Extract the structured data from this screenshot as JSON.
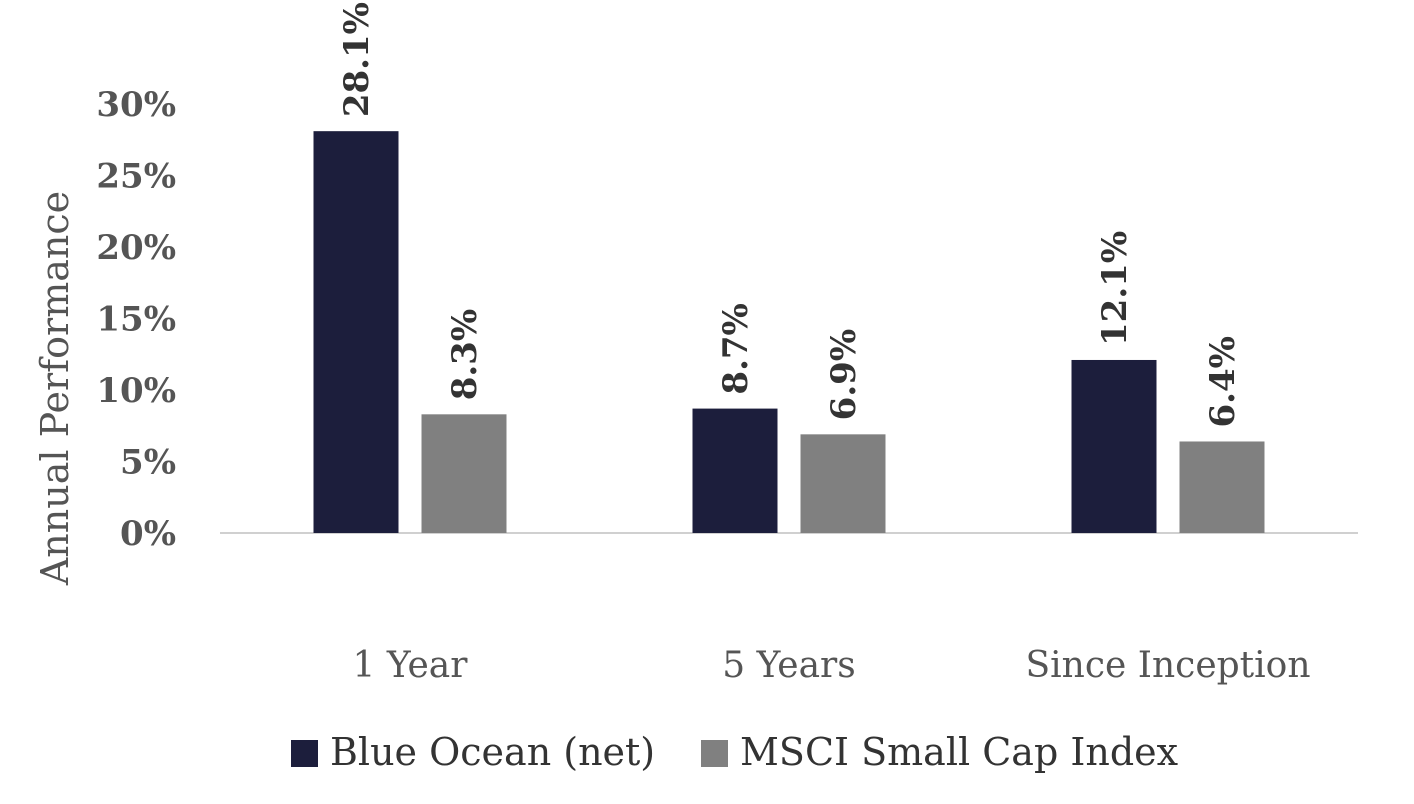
{
  "chart_data": {
    "type": "bar",
    "title": "",
    "xlabel": "",
    "ylabel": "Annual Performance",
    "ylim": [
      0,
      30
    ],
    "yticks": [
      0,
      5,
      10,
      15,
      20,
      25,
      30
    ],
    "ytick_labels": [
      "0%",
      "5%",
      "10%",
      "15%",
      "20%",
      "25%",
      "30%"
    ],
    "categories": [
      "1 Year",
      "5 Years",
      "Since Inception"
    ],
    "series": [
      {
        "name": "Blue Ocean (net)",
        "values": [
          28.1,
          8.7,
          12.1
        ],
        "labels": [
          "28.1%",
          "8.7%",
          "12.1%"
        ],
        "color": "#1c1e3c"
      },
      {
        "name": "MSCI Small Cap Index",
        "values": [
          8.3,
          6.9,
          6.4
        ],
        "labels": [
          "8.3%",
          "6.9%",
          "6.4%"
        ],
        "color": "#808080"
      }
    ],
    "grid": false,
    "legend_position": "bottom"
  }
}
